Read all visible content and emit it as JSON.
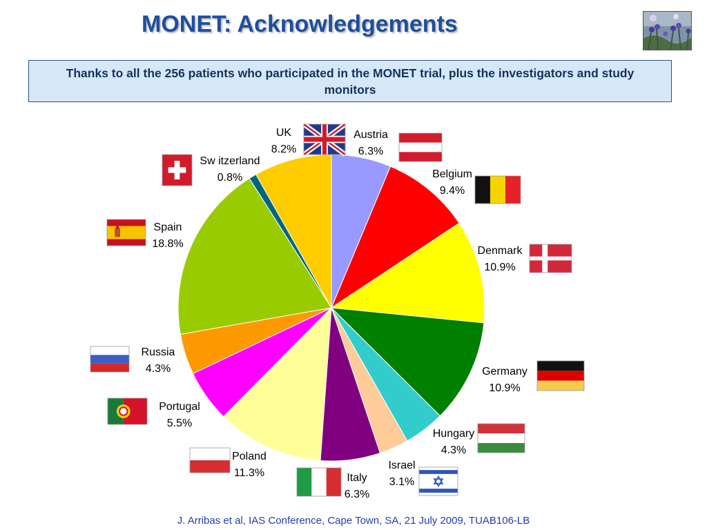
{
  "slide": {
    "title": "MONET: Acknowledgements",
    "thanks": "Thanks to all the 256 patients who participated in the MONET trial, plus the investigators and study monitors",
    "footer": "J. Arribas et al, IAS Conference, Cape Town, SA, 21 July 2009, TUAB106-LB"
  },
  "chart_data": {
    "type": "pie",
    "title": "",
    "start": "12 o'clock",
    "direction": "clockwise",
    "slices": [
      {
        "label": "Austria",
        "pct_label": "6.3%",
        "value": 6.3,
        "color": "#9999ff",
        "flag": "austria"
      },
      {
        "label": "Belgium",
        "pct_label": "9.4%",
        "value": 9.4,
        "color": "#ff0000",
        "flag": "belgium"
      },
      {
        "label": "Denmark",
        "pct_label": "10.9%",
        "value": 10.9,
        "color": "#ffff00",
        "flag": "denmark"
      },
      {
        "label": "Germany",
        "pct_label": "10.9%",
        "value": 10.9,
        "color": "#008000",
        "flag": "germany"
      },
      {
        "label": "Hungary",
        "pct_label": "4.3%",
        "value": 4.3,
        "color": "#33cccc",
        "flag": "hungary"
      },
      {
        "label": "Israel",
        "pct_label": "3.1%",
        "value": 3.1,
        "color": "#ffcc99",
        "flag": "israel"
      },
      {
        "label": "Italy",
        "pct_label": "6.3%",
        "value": 6.3,
        "color": "#800080",
        "flag": "italy"
      },
      {
        "label": "Poland",
        "pct_label": "11.3%",
        "value": 11.3,
        "color": "#ffff99",
        "flag": "poland"
      },
      {
        "label": "Portugal",
        "pct_label": "5.5%",
        "value": 5.5,
        "color": "#ff00ff",
        "flag": "portugal"
      },
      {
        "label": "Russia",
        "pct_label": "4.3%",
        "value": 4.3,
        "color": "#ff9900",
        "flag": "russia"
      },
      {
        "label": "Spain",
        "pct_label": "18.8%",
        "value": 18.8,
        "color": "#99cc00",
        "flag": "spain"
      },
      {
        "label": "Sw itzerland",
        "pct_label": "0.8%",
        "value": 0.8,
        "color": "#006680",
        "flag": "switzerland"
      },
      {
        "label": "UK",
        "pct_label": "8.2%",
        "value": 8.2,
        "color": "#ffcc00",
        "flag": "uk"
      }
    ]
  }
}
